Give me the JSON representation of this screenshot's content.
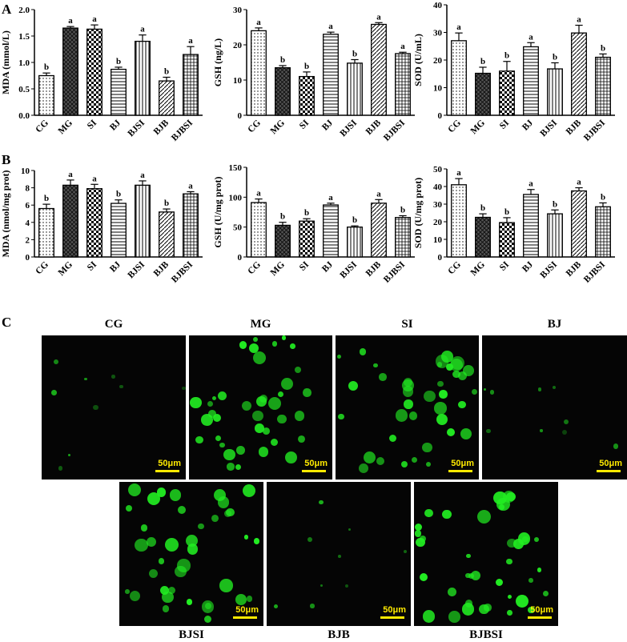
{
  "panel_labels": {
    "a": "A",
    "b": "B",
    "c": "C"
  },
  "bar_sig_color": "#000000",
  "cell_color": "#22ee22",
  "scalebar_color": "#ffea00",
  "chart_data": [
    {
      "type": "bar",
      "categories": [
        "CG",
        "MG",
        "SI",
        "BJ",
        "BJSI",
        "BJB",
        "BJBSI"
      ],
      "values": [
        0.75,
        1.65,
        1.63,
        0.87,
        1.4,
        0.65,
        1.15
      ],
      "errors": [
        0.05,
        0.03,
        0.08,
        0.04,
        0.12,
        0.07,
        0.15
      ],
      "sig": [
        "b",
        "a",
        "a",
        "b",
        "a",
        "b",
        "a"
      ],
      "patterns": [
        "dots",
        "dgrid",
        "checker",
        "hlines",
        "vlines",
        "diag",
        "grid"
      ],
      "ylabel": "MDA (mmol/L)",
      "ylim": [
        0,
        2.0
      ],
      "yticks": [
        "0.0",
        "0.5",
        "1.0",
        "1.5",
        "2.0"
      ]
    },
    {
      "type": "bar",
      "categories": [
        "CG",
        "MG",
        "SI",
        "BJ",
        "BJSI",
        "BJB",
        "BJBSI"
      ],
      "values": [
        24,
        13.5,
        11,
        23,
        14.8,
        25.8,
        17.5
      ],
      "errors": [
        0.8,
        0.6,
        1.3,
        0.6,
        1.0,
        0.5,
        0.4
      ],
      "sig": [
        "a",
        "b",
        "b",
        "a",
        "b",
        "a",
        "a"
      ],
      "patterns": [
        "dots",
        "dgrid",
        "checker",
        "hlines",
        "vlines",
        "diag",
        "grid"
      ],
      "ylabel": "GSH (ng/L)",
      "ylim": [
        0,
        30
      ],
      "yticks": [
        "0",
        "10",
        "20",
        "30"
      ]
    },
    {
      "type": "bar",
      "categories": [
        "CG",
        "MG",
        "SI",
        "BJ",
        "BJSI",
        "BJB",
        "BJBSI"
      ],
      "values": [
        27,
        15.2,
        16,
        24.8,
        16.8,
        29.8,
        21
      ],
      "errors": [
        2.8,
        2.2,
        3.5,
        1.5,
        2.2,
        2.8,
        1.2
      ],
      "sig": [
        "a",
        "b",
        "b",
        "a",
        "b",
        "a",
        "b"
      ],
      "patterns": [
        "dots",
        "dgrid",
        "checker",
        "hlines",
        "vlines",
        "diag",
        "grid"
      ],
      "ylabel": "SOD (U/mL)",
      "ylim": [
        0,
        40
      ],
      "yticks": [
        "0",
        "10",
        "20",
        "30",
        "40"
      ]
    },
    {
      "type": "bar",
      "categories": [
        "CG",
        "MG",
        "SI",
        "BJ",
        "BJSI",
        "BJB",
        "BJBSI"
      ],
      "values": [
        5.6,
        8.3,
        7.9,
        6.2,
        8.3,
        5.2,
        7.3
      ],
      "errors": [
        0.5,
        0.6,
        0.5,
        0.4,
        0.5,
        0.35,
        0.25
      ],
      "sig": [
        "b",
        "a",
        "a",
        "b",
        "a",
        "b",
        "a"
      ],
      "patterns": [
        "dots",
        "dgrid",
        "checker",
        "hlines",
        "vlines",
        "diag",
        "grid"
      ],
      "ylabel": "MDA (nmol/mg prot)",
      "ylim": [
        0,
        10
      ],
      "yticks": [
        "0",
        "2",
        "4",
        "6",
        "8",
        "10"
      ]
    },
    {
      "type": "bar",
      "categories": [
        "CG",
        "MG",
        "SI",
        "BJ",
        "BJSI",
        "BJB",
        "BJBSI"
      ],
      "values": [
        91,
        53,
        60,
        87,
        50,
        90,
        66
      ],
      "errors": [
        6,
        5,
        4,
        3,
        2,
        6,
        3
      ],
      "sig": [
        "a",
        "b",
        "b",
        "a",
        "b",
        "a",
        "b"
      ],
      "patterns": [
        "dots",
        "dgrid",
        "checker",
        "hlines",
        "vlines",
        "diag",
        "grid"
      ],
      "ylabel": "GSH (U/mg prot)",
      "ylim": [
        0,
        150
      ],
      "yticks": [
        "0",
        "50",
        "100",
        "150"
      ]
    },
    {
      "type": "bar",
      "categories": [
        "CG",
        "MG",
        "SI",
        "BJ",
        "BJSI",
        "BJB",
        "BJBSI"
      ],
      "values": [
        41,
        22.5,
        19.5,
        35.5,
        24.5,
        37.5,
        28.5
      ],
      "errors": [
        3.5,
        2,
        2.8,
        2.8,
        2.2,
        1.8,
        2.2
      ],
      "sig": [
        "a",
        "b",
        "b",
        "a",
        "b",
        "a",
        "b"
      ],
      "patterns": [
        "dots",
        "dgrid",
        "checker",
        "hlines",
        "vlines",
        "diag",
        "grid"
      ],
      "ylabel": "SOD (U/mg prot)",
      "ylim": [
        0,
        50
      ],
      "yticks": [
        "0",
        "10",
        "20",
        "30",
        "40",
        "50"
      ]
    }
  ],
  "micrographs": [
    {
      "title": "CG",
      "scale": "50μm",
      "density": "low"
    },
    {
      "title": "MG",
      "scale": "50μm",
      "density": "high"
    },
    {
      "title": "SI",
      "scale": "50μm",
      "density": "high"
    },
    {
      "title": "BJ",
      "scale": "50μm",
      "density": "low"
    },
    {
      "title": "BJSI",
      "scale": "50μm",
      "density": "high"
    },
    {
      "title": "BJB",
      "scale": "50μm",
      "density": "low"
    },
    {
      "title": "BJBSI",
      "scale": "50μm",
      "density": "high"
    }
  ]
}
